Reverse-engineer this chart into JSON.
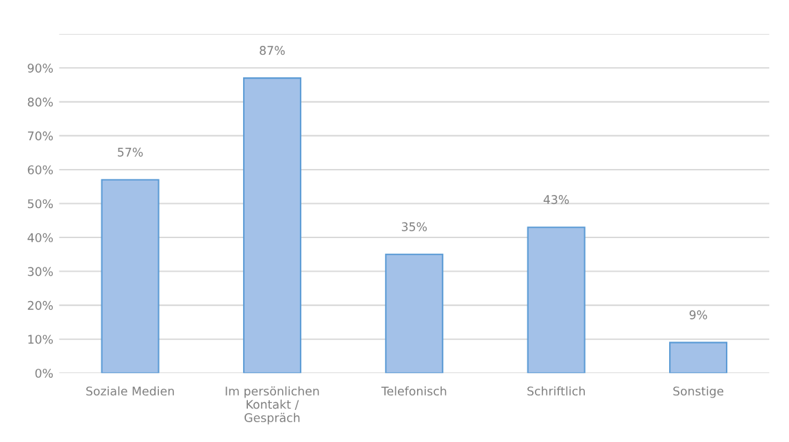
{
  "chart_data": {
    "type": "bar",
    "categories": [
      "Soziale Medien",
      "Im persönlichen\nKontakt /\nGespräch",
      "Telefonisch",
      "Schriftlich",
      "Sonstige"
    ],
    "values": [
      57,
      87,
      35,
      43,
      9
    ],
    "value_labels": [
      "57%",
      "87%",
      "35%",
      "43%",
      "9%"
    ],
    "color": "#a3c1e8",
    "ylim": [
      0,
      100
    ],
    "yticks": [
      {
        "value": 0,
        "label": "0%"
      },
      {
        "value": 10,
        "label": "10%"
      },
      {
        "value": 20,
        "label": "20%"
      },
      {
        "value": 30,
        "label": "30%"
      },
      {
        "value": 40,
        "label": "40%"
      },
      {
        "value": 50,
        "label": "50%"
      },
      {
        "value": 60,
        "label": "60%"
      },
      {
        "value": 70,
        "label": "70%"
      },
      {
        "value": 80,
        "label": "80%"
      },
      {
        "value": 90,
        "label": "90%"
      },
      {
        "value": 100,
        "label": null
      }
    ],
    "grid": "y"
  }
}
